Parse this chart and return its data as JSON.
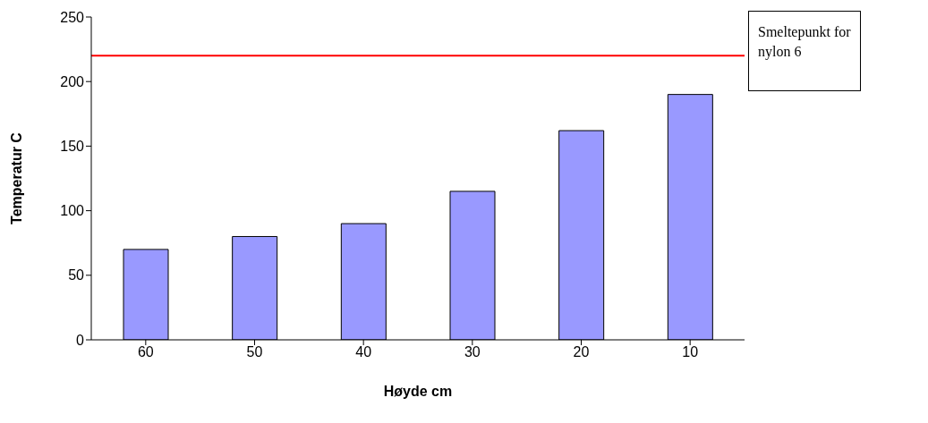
{
  "chart_data": {
    "type": "bar",
    "xlabel": "Høyde cm",
    "ylabel": "Temperatur C",
    "categories": [
      "60",
      "50",
      "40",
      "30",
      "20",
      "10"
    ],
    "values": [
      70,
      80,
      90,
      115,
      162,
      190
    ],
    "color": "#9999ff",
    "ylim": [
      0,
      250
    ],
    "yticks": [
      0,
      50,
      100,
      150,
      200,
      250
    ],
    "grid": false,
    "legend": false,
    "ref_lines": [
      {
        "axis": "y",
        "value": 220,
        "label": "Smeltepunkt for nylon 6",
        "color": "#ff0000",
        "line_style": "solid"
      }
    ]
  }
}
